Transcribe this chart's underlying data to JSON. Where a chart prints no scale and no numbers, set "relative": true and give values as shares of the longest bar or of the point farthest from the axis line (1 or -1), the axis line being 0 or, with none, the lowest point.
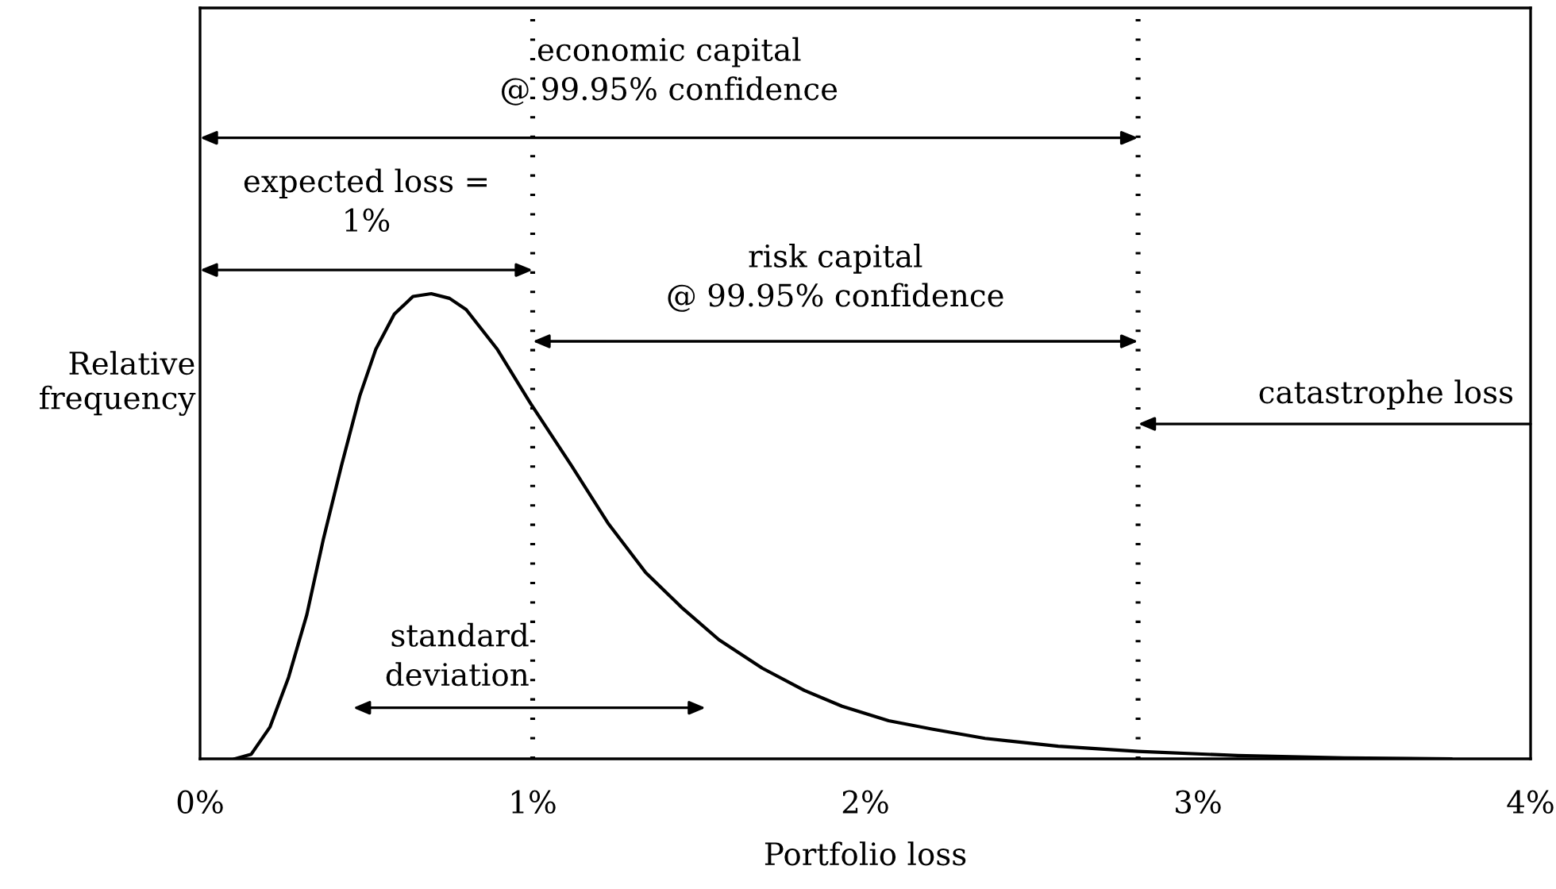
{
  "chart_data": {
    "type": "line",
    "relative": true,
    "xlabel": "Portfolio loss",
    "ylabel": "Relative\nfrequency",
    "x": [
      0.105,
      0.154,
      0.21,
      0.266,
      0.321,
      0.37,
      0.425,
      0.48,
      0.528,
      0.584,
      0.64,
      0.695,
      0.75,
      0.8,
      0.894,
      0.99,
      1.117,
      1.228,
      1.34,
      1.45,
      1.56,
      1.69,
      1.817,
      1.93,
      2.07,
      2.2,
      2.36,
      2.58,
      2.82,
      3.12,
      3.44,
      3.76
    ],
    "series": [
      {
        "color": "#000000",
        "values": [
          0,
          0.01,
          0.068,
          0.175,
          0.31,
          0.47,
          0.63,
          0.78,
          0.88,
          0.956,
          0.994,
          1.0,
          0.99,
          0.966,
          0.88,
          0.768,
          0.63,
          0.505,
          0.4,
          0.324,
          0.256,
          0.195,
          0.147,
          0.113,
          0.082,
          0.064,
          0.044,
          0.027,
          0.016,
          0.007,
          0.002,
          0
        ]
      }
    ],
    "xlim": [
      0,
      4
    ],
    "xticks": [
      {
        "value": 0,
        "label": "0%"
      },
      {
        "value": 1,
        "label": "1%"
      },
      {
        "value": 2,
        "label": "2%"
      },
      {
        "value": 3,
        "label": "3%"
      },
      {
        "value": 4,
        "label": "4%"
      }
    ],
    "tick_labels": "x",
    "grid": false,
    "legend": false,
    "marker": "none",
    "line_style": "solid",
    "ref_lines": [
      {
        "axis": "x",
        "value": 1,
        "color": "#000000",
        "line_style": "dotted"
      },
      {
        "axis": "x",
        "value": 2.82,
        "color": "#000000",
        "line_style": "dotted"
      }
    ],
    "annotations": [
      "economic capital\n@ 99.95% confidence",
      "expected loss =\n1%",
      "risk capital\n@ 99.95% confidence",
      "catastrophe loss",
      "standard\ndeviation"
    ]
  }
}
